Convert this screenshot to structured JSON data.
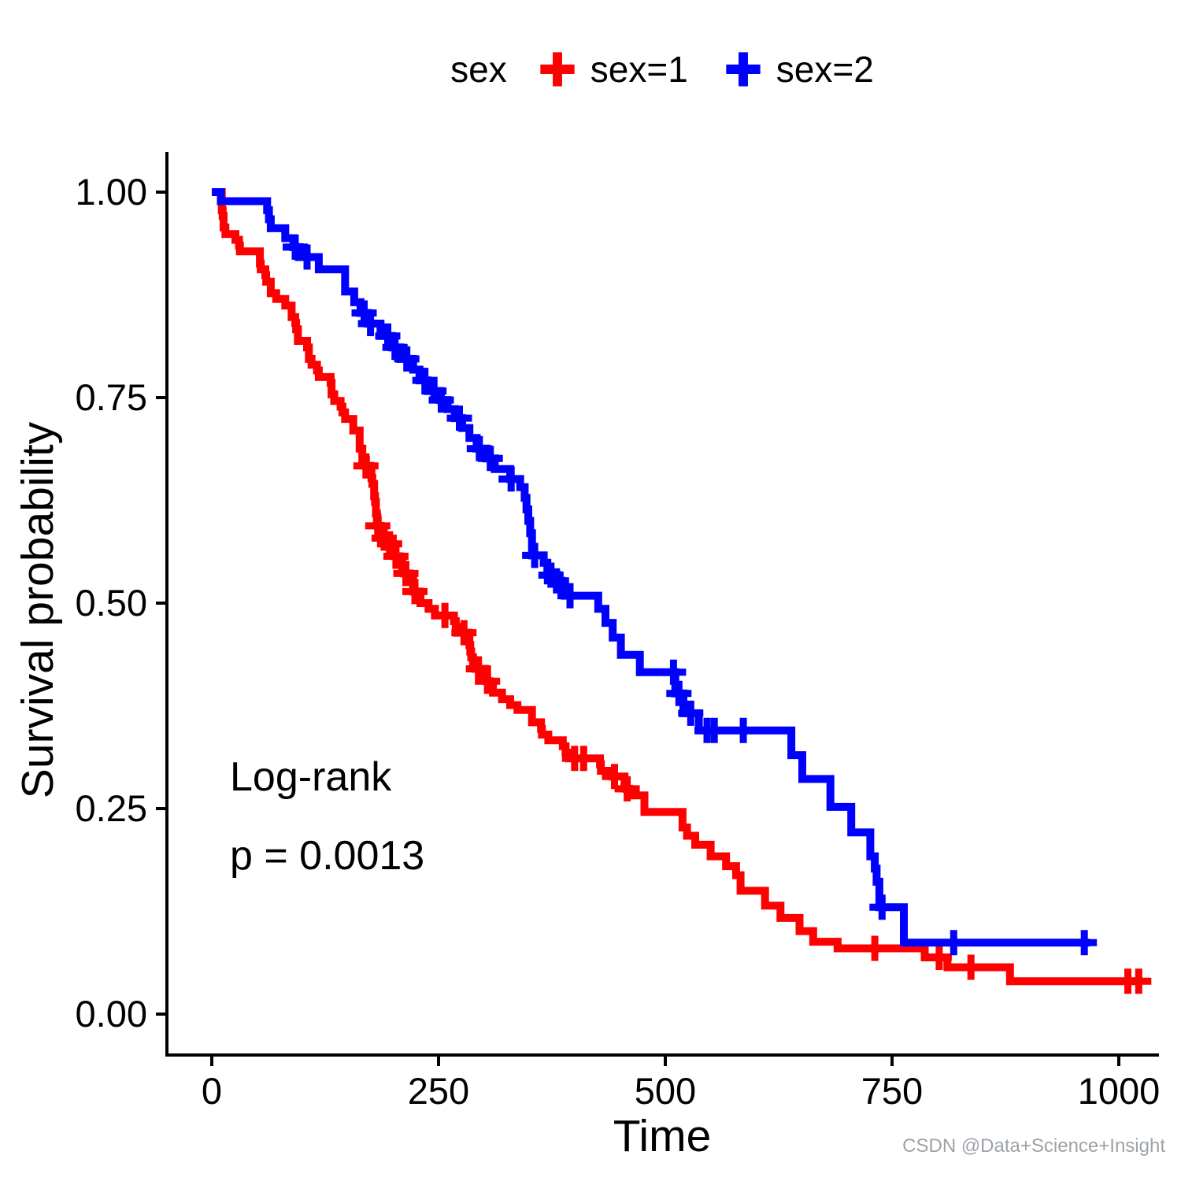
{
  "watermark": "CSDN @Data+Science+Insight",
  "chart_data": {
    "type": "line",
    "subtype": "kaplan_meier_step_curve",
    "title": "",
    "xlabel": "Time",
    "ylabel": "Survival probability",
    "xlim": [
      0,
      1035
    ],
    "ylim": [
      0.0,
      1.0
    ],
    "grid": false,
    "xticks": {
      "values": [
        0,
        250,
        500,
        750,
        1000
      ],
      "labels": [
        "0",
        "250",
        "500",
        "750",
        "1000"
      ]
    },
    "yticks": {
      "values": [
        1.0,
        0.75,
        0.5,
        0.25,
        0.0
      ],
      "labels": [
        "1.00",
        "0.75",
        "0.50",
        "0.25",
        "0.00"
      ]
    },
    "legend": {
      "position": "top",
      "title": "sex",
      "entries": [
        {
          "label": "sex=1",
          "color": "#ff0000"
        },
        {
          "label": "sex=2",
          "color": "#0000ff"
        }
      ]
    },
    "annotation": {
      "line1": "Log-rank",
      "line2": "p = 0.0013"
    },
    "axis_color": "#000000",
    "series": [
      {
        "name": "sex=1",
        "color": "#ff0000",
        "start": [
          0,
          1.0
        ],
        "end_time": 1026,
        "steps": [
          [
            11,
            0.978
          ],
          [
            12,
            0.971
          ],
          [
            13,
            0.957
          ],
          [
            15,
            0.949
          ],
          [
            26,
            0.942
          ],
          [
            30,
            0.935
          ],
          [
            31,
            0.928
          ],
          [
            53,
            0.913
          ],
          [
            54,
            0.906
          ],
          [
            59,
            0.899
          ],
          [
            60,
            0.891
          ],
          [
            65,
            0.877
          ],
          [
            71,
            0.87
          ],
          [
            81,
            0.862
          ],
          [
            88,
            0.848
          ],
          [
            92,
            0.841
          ],
          [
            93,
            0.833
          ],
          [
            95,
            0.819
          ],
          [
            105,
            0.811
          ],
          [
            107,
            0.797
          ],
          [
            110,
            0.79
          ],
          [
            116,
            0.783
          ],
          [
            118,
            0.775
          ],
          [
            131,
            0.768
          ],
          [
            132,
            0.754
          ],
          [
            135,
            0.746
          ],
          [
            142,
            0.739
          ],
          [
            144,
            0.732
          ],
          [
            147,
            0.724
          ],
          [
            156,
            0.71
          ],
          [
            163,
            0.688
          ],
          [
            166,
            0.674
          ],
          [
            170,
            0.667
          ],
          [
            175,
            0.659
          ],
          [
            176,
            0.652
          ],
          [
            177,
            0.645
          ],
          [
            179,
            0.63
          ],
          [
            180,
            0.623
          ],
          [
            181,
            0.609
          ],
          [
            182,
            0.601
          ],
          [
            183,
            0.594
          ],
          [
            186,
            0.587
          ],
          [
            189,
            0.579
          ],
          [
            194,
            0.572
          ],
          [
            197,
            0.565
          ],
          [
            202,
            0.557
          ],
          [
            207,
            0.55
          ],
          [
            210,
            0.543
          ],
          [
            212,
            0.536
          ],
          [
            218,
            0.528
          ],
          [
            222,
            0.521
          ],
          [
            223,
            0.514
          ],
          [
            229,
            0.507
          ],
          [
            230,
            0.5
          ],
          [
            239,
            0.493
          ],
          [
            246,
            0.485
          ],
          [
            267,
            0.478
          ],
          [
            269,
            0.471
          ],
          [
            270,
            0.464
          ],
          [
            283,
            0.456
          ],
          [
            284,
            0.449
          ],
          [
            285,
            0.441
          ],
          [
            286,
            0.434
          ],
          [
            288,
            0.428
          ],
          [
            291,
            0.42
          ],
          [
            301,
            0.413
          ],
          [
            303,
            0.405
          ],
          [
            306,
            0.399
          ],
          [
            310,
            0.391
          ],
          [
            320,
            0.383
          ],
          [
            329,
            0.376
          ],
          [
            337,
            0.37
          ],
          [
            353,
            0.355
          ],
          [
            363,
            0.347
          ],
          [
            364,
            0.34
          ],
          [
            371,
            0.333
          ],
          [
            387,
            0.326
          ],
          [
            390,
            0.318
          ],
          [
            394,
            0.311
          ],
          [
            428,
            0.304
          ],
          [
            429,
            0.296
          ],
          [
            442,
            0.289
          ],
          [
            455,
            0.282
          ],
          [
            457,
            0.274
          ],
          [
            460,
            0.266
          ],
          [
            477,
            0.246
          ],
          [
            519,
            0.227
          ],
          [
            524,
            0.217
          ],
          [
            533,
            0.206
          ],
          [
            550,
            0.192
          ],
          [
            567,
            0.18
          ],
          [
            578,
            0.169
          ],
          [
            583,
            0.15
          ],
          [
            610,
            0.132
          ],
          [
            627,
            0.117
          ],
          [
            648,
            0.101
          ],
          [
            663,
            0.088
          ],
          [
            690,
            0.08
          ],
          [
            786,
            0.069
          ],
          [
            811,
            0.057
          ],
          [
            880,
            0.04
          ]
        ],
        "censors": [
          [
            170,
            0.667
          ],
          [
            183,
            0.594
          ],
          [
            190,
            0.579
          ],
          [
            196,
            0.572
          ],
          [
            203,
            0.557
          ],
          [
            214,
            0.536
          ],
          [
            224,
            0.514
          ],
          [
            257,
            0.485
          ],
          [
            278,
            0.464
          ],
          [
            294,
            0.42
          ],
          [
            304,
            0.405
          ],
          [
            400,
            0.311
          ],
          [
            410,
            0.311
          ],
          [
            444,
            0.289
          ],
          [
            458,
            0.274
          ],
          [
            731,
            0.08
          ],
          [
            802,
            0.069
          ],
          [
            837,
            0.057
          ],
          [
            1010,
            0.04
          ],
          [
            1022,
            0.04
          ]
        ]
      },
      {
        "name": "sex=2",
        "color": "#0000ff",
        "start": [
          0,
          1.0
        ],
        "end_time": 968,
        "steps": [
          [
            10,
            0.989
          ],
          [
            61,
            0.978
          ],
          [
            63,
            0.967
          ],
          [
            65,
            0.956
          ],
          [
            81,
            0.944
          ],
          [
            90,
            0.933
          ],
          [
            97,
            0.921
          ],
          [
            118,
            0.906
          ],
          [
            147,
            0.879
          ],
          [
            157,
            0.866
          ],
          [
            164,
            0.853
          ],
          [
            172,
            0.84
          ],
          [
            186,
            0.825
          ],
          [
            199,
            0.811
          ],
          [
            208,
            0.797
          ],
          [
            222,
            0.784
          ],
          [
            229,
            0.771
          ],
          [
            238,
            0.758
          ],
          [
            252,
            0.747
          ],
          [
            260,
            0.736
          ],
          [
            268,
            0.725
          ],
          [
            276,
            0.713
          ],
          [
            284,
            0.701
          ],
          [
            292,
            0.688
          ],
          [
            302,
            0.676
          ],
          [
            312,
            0.663
          ],
          [
            329,
            0.651
          ],
          [
            340,
            0.641
          ],
          [
            345,
            0.628
          ],
          [
            347,
            0.614
          ],
          [
            349,
            0.6
          ],
          [
            351,
            0.585
          ],
          [
            353,
            0.558
          ],
          [
            366,
            0.549
          ],
          [
            370,
            0.541
          ],
          [
            373,
            0.534
          ],
          [
            382,
            0.527
          ],
          [
            386,
            0.518
          ],
          [
            389,
            0.509
          ],
          [
            426,
            0.493
          ],
          [
            434,
            0.476
          ],
          [
            442,
            0.458
          ],
          [
            451,
            0.437
          ],
          [
            472,
            0.416
          ],
          [
            511,
            0.39
          ],
          [
            520,
            0.366
          ],
          [
            537,
            0.345
          ],
          [
            639,
            0.315
          ],
          [
            651,
            0.286
          ],
          [
            682,
            0.252
          ],
          [
            705,
            0.221
          ],
          [
            726,
            0.192
          ],
          [
            731,
            0.177
          ],
          [
            733,
            0.161
          ],
          [
            736,
            0.13
          ],
          [
            763,
            0.087
          ]
        ],
        "censors": [
          [
            92,
            0.933
          ],
          [
            105,
            0.921
          ],
          [
            168,
            0.853
          ],
          [
            175,
            0.84
          ],
          [
            194,
            0.825
          ],
          [
            202,
            0.811
          ],
          [
            215,
            0.797
          ],
          [
            235,
            0.771
          ],
          [
            245,
            0.758
          ],
          [
            253,
            0.747
          ],
          [
            273,
            0.725
          ],
          [
            295,
            0.688
          ],
          [
            307,
            0.676
          ],
          [
            330,
            0.651
          ],
          [
            356,
            0.558
          ],
          [
            374,
            0.534
          ],
          [
            380,
            0.527
          ],
          [
            395,
            0.509
          ],
          [
            509,
            0.416
          ],
          [
            515,
            0.39
          ],
          [
            528,
            0.366
          ],
          [
            546,
            0.345
          ],
          [
            554,
            0.345
          ],
          [
            586,
            0.345
          ],
          [
            739,
            0.13
          ],
          [
            818,
            0.087
          ],
          [
            962,
            0.087
          ]
        ]
      }
    ]
  }
}
